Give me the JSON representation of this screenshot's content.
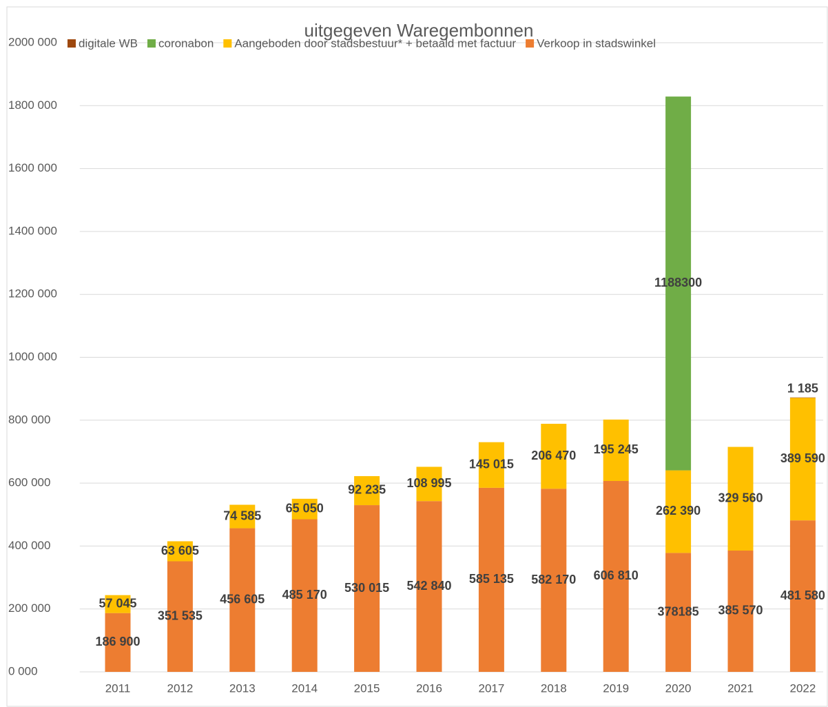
{
  "chart_data": {
    "type": "stacked_bar",
    "title": "uitgegeven Waregembonnen",
    "categories": [
      "2011",
      "2012",
      "2013",
      "2014",
      "2015",
      "2016",
      "2017",
      "2018",
      "2019",
      "2020",
      "2021",
      "2022"
    ],
    "series": [
      {
        "name": "Verkoop in stadswinkel",
        "color": "#ed7d31",
        "values": [
          186900,
          351535,
          456605,
          485170,
          530015,
          542840,
          585135,
          582170,
          606810,
          378185,
          385570,
          481580
        ],
        "value_labels": [
          "186 900",
          "351 535",
          "456 605",
          "485 170",
          "530 015",
          "542 840",
          "585 135",
          "582 170",
          "606 810",
          "378185",
          "385 570",
          "481 580"
        ]
      },
      {
        "name": "Aangeboden door stadsbestuur* + betaald met factuur",
        "color": "#ffc000",
        "values": [
          57045,
          63605,
          74585,
          65050,
          92235,
          108995,
          145015,
          206470,
          195245,
          262390,
          329560,
          389590
        ],
        "value_labels": [
          "57 045",
          "63 605",
          "74 585",
          "65 050",
          "92 235",
          "108 995",
          "145 015",
          "206 470",
          "195 245",
          "262 390",
          "329 560",
          "389 590"
        ]
      },
      {
        "name": "coronabon",
        "color": "#70ad47",
        "values": [
          null,
          null,
          null,
          null,
          null,
          null,
          null,
          null,
          null,
          1188300,
          null,
          null
        ]
      },
      {
        "name": "digitale WB",
        "color": "#9e480e",
        "values": [
          null,
          null,
          null,
          null,
          null,
          null,
          null,
          null,
          null,
          null,
          null,
          1185
        ],
        "value_labels": [
          null,
          null,
          null,
          null,
          null,
          null,
          null,
          null,
          null,
          null,
          null,
          "1 185"
        ]
      }
    ],
    "legend_order": [
      3,
      2,
      1,
      0
    ],
    "ylim": [
      0,
      2000000
    ],
    "yticks": [
      {
        "value": 0,
        "label": "0 000"
      },
      {
        "value": 200000,
        "label": "200 000"
      },
      {
        "value": 400000,
        "label": "400 000"
      },
      {
        "value": 600000,
        "label": "600 000"
      },
      {
        "value": 800000,
        "label": "800 000"
      },
      {
        "value": 1000000,
        "label": "1000 000"
      },
      {
        "value": 1200000,
        "label": "1200 000"
      },
      {
        "value": 1400000,
        "label": "1400 000"
      },
      {
        "value": 1600000,
        "label": "1600 000"
      },
      {
        "value": 1800000,
        "label": "1800 000"
      },
      {
        "value": 2000000,
        "label": "2000 000"
      }
    ],
    "grid": true,
    "legend": "top"
  }
}
